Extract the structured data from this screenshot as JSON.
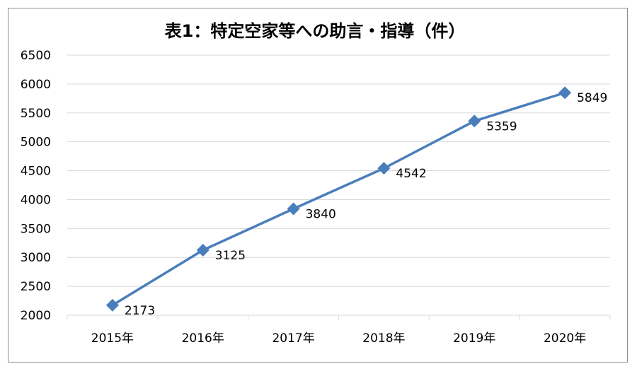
{
  "chart_data": {
    "type": "line",
    "title": "表1：特定空家等への助言・指導（件）",
    "categories": [
      "2015年",
      "2016年",
      "2017年",
      "2018年",
      "2019年",
      "2020年"
    ],
    "series": [
      {
        "values": [
          2173,
          3125,
          3840,
          4542,
          5359,
          5849
        ],
        "color": "#4a7ebb",
        "marker": "diamond",
        "data_labels": true
      }
    ],
    "ylim": [
      2000,
      6500
    ],
    "yticks": [
      2000,
      2500,
      3000,
      3500,
      4000,
      4500,
      5000,
      5500,
      6000,
      6500
    ],
    "grid": true,
    "legend": "none",
    "xlabel": "",
    "ylabel": ""
  },
  "colors": {
    "line": "#4a7ebb",
    "grid": "#d9d9d9",
    "border": "#8c8c8c"
  }
}
